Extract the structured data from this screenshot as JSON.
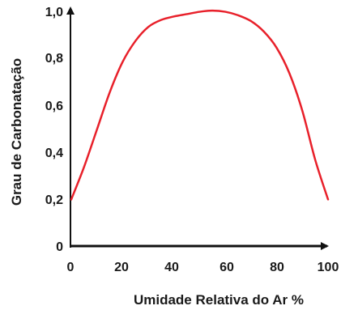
{
  "chart_data": {
    "type": "line",
    "title": "",
    "xlabel": "Umidade Relativa do Ar %",
    "ylabel": "Grau de Carbonatação",
    "xlim": [
      0,
      100
    ],
    "ylim": [
      0,
      1.0
    ],
    "x_ticks": [
      "0",
      "20",
      "40",
      "60",
      "80",
      "100"
    ],
    "y_ticks": [
      "0",
      "0,2",
      "0,4",
      "0,6",
      "0,8",
      "1,0"
    ],
    "grid": false,
    "legend": "none",
    "series": [
      {
        "color": "#e8202a",
        "x": [
          0,
          5,
          10,
          15,
          20,
          25,
          30,
          35,
          40,
          45,
          50,
          55,
          60,
          65,
          70,
          75,
          80,
          85,
          90,
          95,
          100
        ],
        "y": [
          0.2,
          0.34,
          0.5,
          0.66,
          0.79,
          0.88,
          0.94,
          0.97,
          0.985,
          0.995,
          1.005,
          1.01,
          1.005,
          0.99,
          0.965,
          0.92,
          0.85,
          0.74,
          0.58,
          0.37,
          0.2
        ]
      }
    ]
  }
}
